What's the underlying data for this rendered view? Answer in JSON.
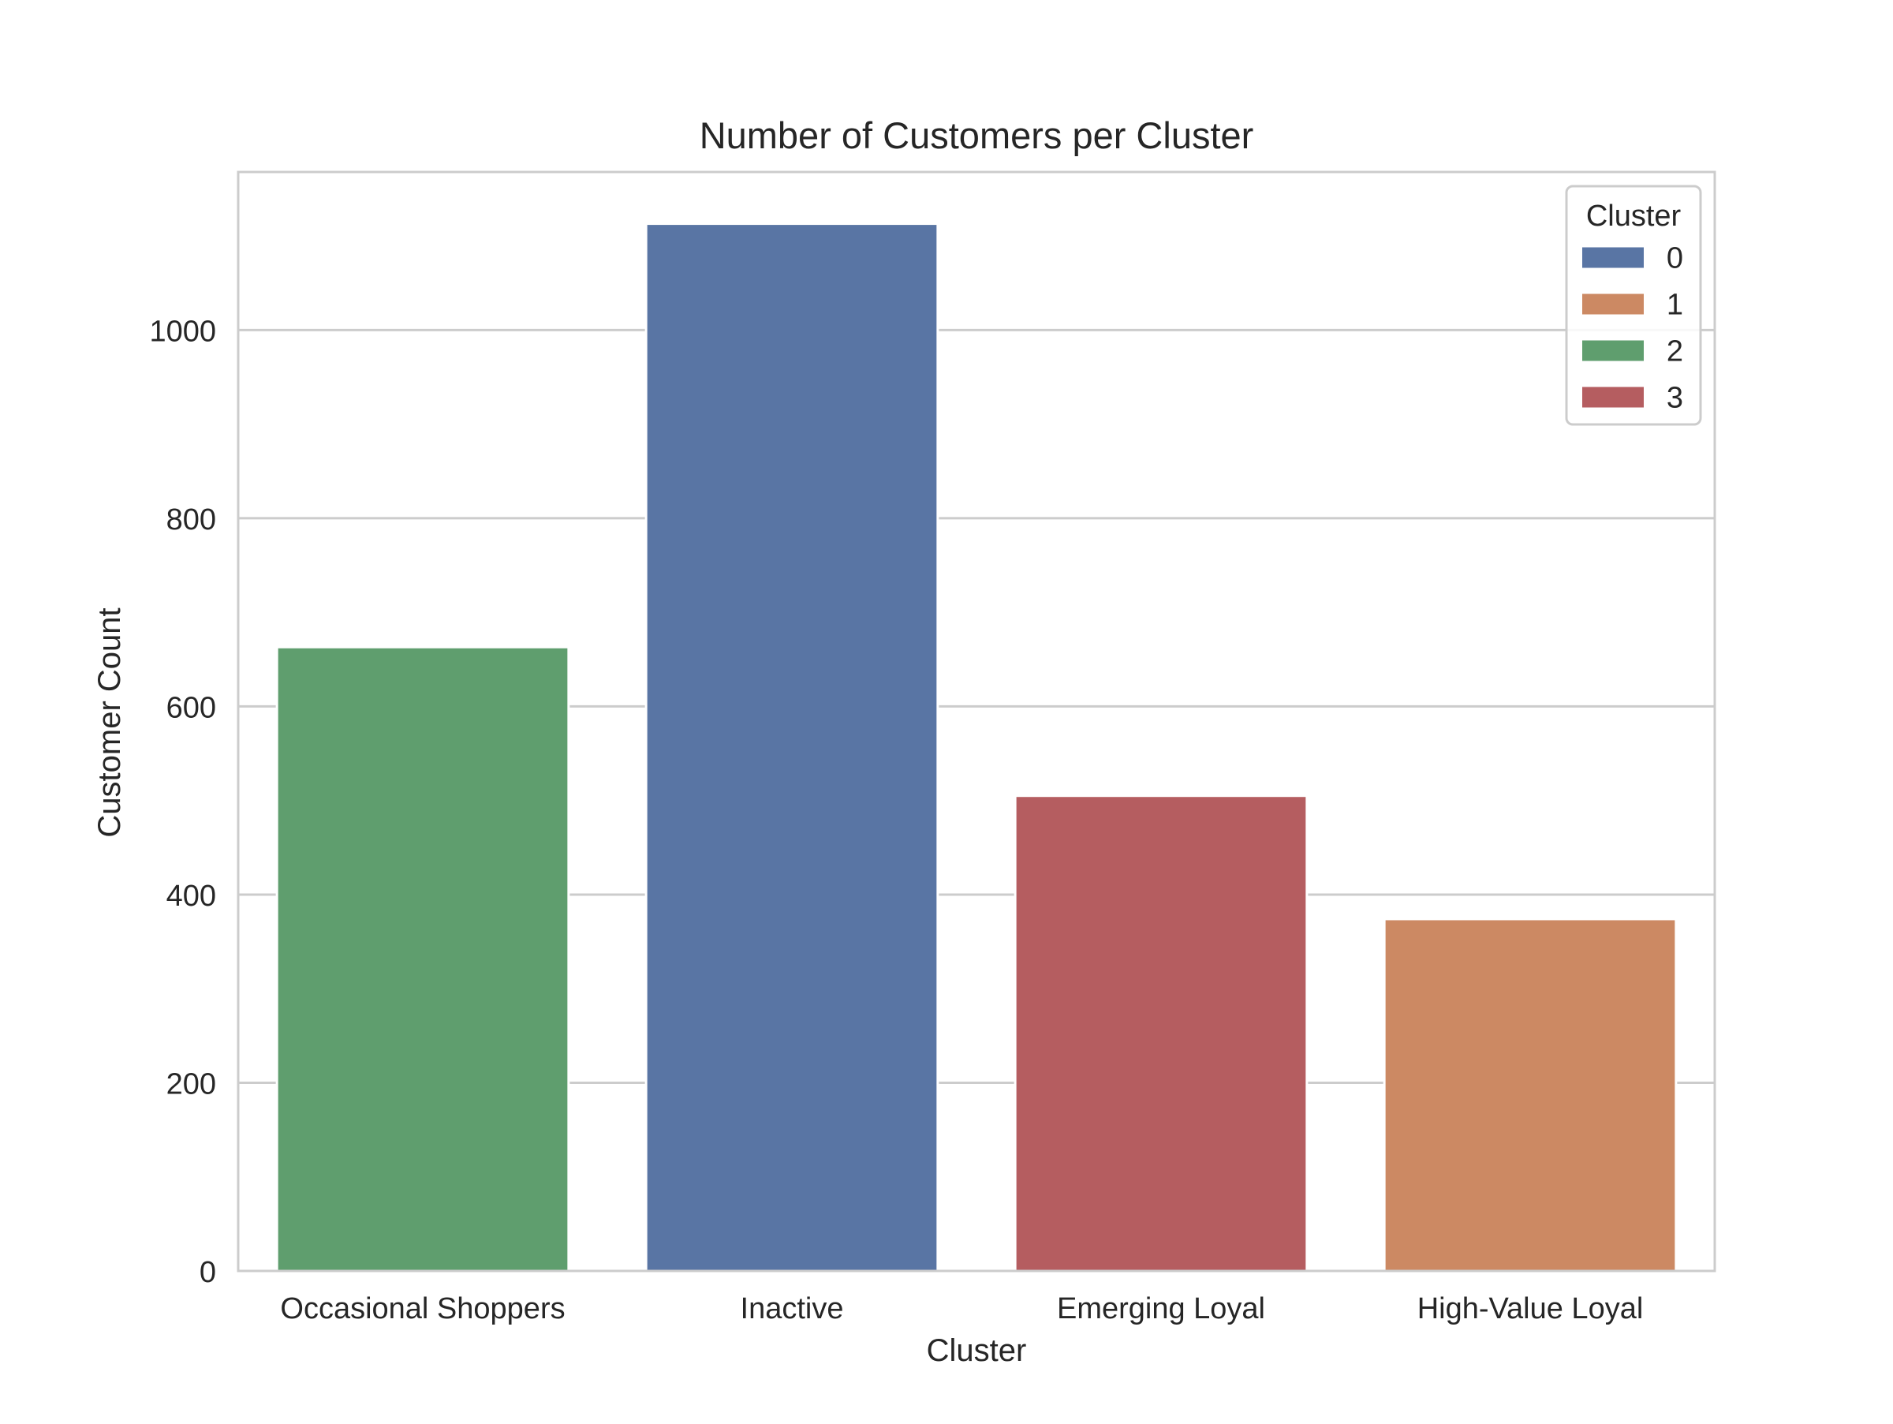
{
  "chart_data": {
    "type": "bar",
    "title": "Number of Customers per Cluster",
    "xlabel": "Cluster",
    "ylabel": "Customer Count",
    "categories": [
      "Occasional Shoppers",
      "Inactive",
      "Emerging Loyal",
      "High-Value Loyal"
    ],
    "values": [
      663,
      1113,
      505,
      374
    ],
    "bar_cluster": [
      "2",
      "0",
      "3",
      "1"
    ],
    "ylim": [
      0,
      1168
    ],
    "yticks": [
      0,
      200,
      400,
      600,
      800,
      1000
    ],
    "grid": "horizontal",
    "legend": {
      "title": "Cluster",
      "placement": "top-right",
      "entries": [
        {
          "label": "0",
          "color": "#5975a4"
        },
        {
          "label": "1",
          "color": "#cc8963"
        },
        {
          "label": "2",
          "color": "#5f9e6e"
        },
        {
          "label": "3",
          "color": "#b55d60"
        }
      ]
    }
  }
}
